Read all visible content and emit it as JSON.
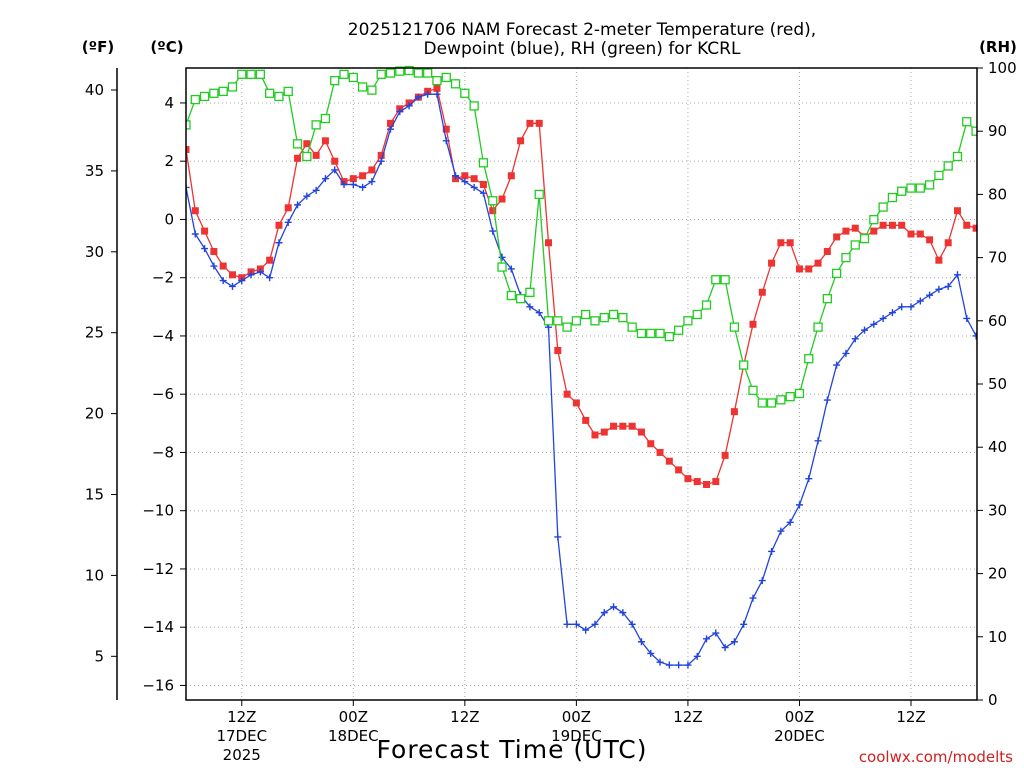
{
  "chart_data": {
    "type": "line",
    "title_line1": "2025121706 NAM Forecast 2-meter Temperature (red),",
    "title_line2": "Dewpoint (blue), RH (green) for KCRL",
    "xlabel": "Forecast Time (UTC)",
    "credit": "coolwx.com/modelts",
    "left_unit_f": "(ºF)",
    "left_unit_c": "(ºC)",
    "right_unit": "(RH)",
    "x_range_hours": [
      0,
      84
    ],
    "y_c_range": [
      -16.5,
      5.2
    ],
    "y_f_range": [
      2.3,
      41.36
    ],
    "y_rh_range": [
      0,
      100
    ],
    "y_c_ticks": [
      "4",
      "2",
      "0",
      "−2",
      "−4",
      "−6",
      "−8",
      "−10",
      "−12",
      "−14",
      "−16"
    ],
    "y_c_tick_values": [
      4,
      2,
      0,
      -2,
      -4,
      -6,
      -8,
      -10,
      -12,
      -14,
      -16
    ],
    "y_f_ticks": [
      "40",
      "35",
      "30",
      "25",
      "20",
      "15",
      "10",
      "5"
    ],
    "y_f_tick_values": [
      40,
      35,
      30,
      25,
      20,
      15,
      10,
      5
    ],
    "y_rh_ticks": [
      "100",
      "90",
      "80",
      "70",
      "60",
      "50",
      "40",
      "30",
      "20",
      "10",
      "0"
    ],
    "y_rh_tick_values": [
      100,
      90,
      80,
      70,
      60,
      50,
      40,
      30,
      20,
      10,
      0
    ],
    "x_ticks": [
      {
        "hour": 6,
        "line1": "12Z",
        "line2": "17DEC",
        "line3": "2025"
      },
      {
        "hour": 18,
        "line1": "00Z",
        "line2": "18DEC",
        "line3": ""
      },
      {
        "hour": 30,
        "line1": "12Z",
        "line2": "",
        "line3": ""
      },
      {
        "hour": 42,
        "line1": "00Z",
        "line2": "19DEC",
        "line3": ""
      },
      {
        "hour": 54,
        "line1": "12Z",
        "line2": "",
        "line3": ""
      },
      {
        "hour": 66,
        "line1": "00Z",
        "line2": "20DEC",
        "line3": ""
      },
      {
        "hour": 78,
        "line1": "12Z",
        "line2": "",
        "line3": ""
      }
    ],
    "grid": true,
    "series": [
      {
        "name": "Temperature",
        "units": "C",
        "color": "#ee3333",
        "marker": "filled-square",
        "points": [
          [
            0,
            2.4
          ],
          [
            1,
            0.3
          ],
          [
            2,
            -0.4
          ],
          [
            3,
            -1.1
          ],
          [
            4,
            -1.6
          ],
          [
            5,
            -1.9
          ],
          [
            6,
            -2.0
          ],
          [
            7,
            -1.8
          ],
          [
            8,
            -1.7
          ],
          [
            9,
            -1.4
          ],
          [
            10,
            -0.2
          ],
          [
            11,
            0.4
          ],
          [
            12,
            2.1
          ],
          [
            13,
            2.6
          ],
          [
            14,
            2.2
          ],
          [
            15,
            2.7
          ],
          [
            16,
            2.0
          ],
          [
            17,
            1.3
          ],
          [
            18,
            1.4
          ],
          [
            19,
            1.5
          ],
          [
            20,
            1.7
          ],
          [
            21,
            2.2
          ],
          [
            22,
            3.3
          ],
          [
            23,
            3.8
          ],
          [
            24,
            4.0
          ],
          [
            25,
            4.2
          ],
          [
            26,
            4.4
          ],
          [
            27,
            4.5
          ],
          [
            28,
            3.1
          ],
          [
            29,
            1.4
          ],
          [
            30,
            1.5
          ],
          [
            31,
            1.4
          ],
          [
            32,
            1.2
          ],
          [
            33,
            0.3
          ],
          [
            34,
            0.7
          ],
          [
            35,
            1.5
          ],
          [
            36,
            2.7
          ],
          [
            37,
            3.3
          ],
          [
            38,
            3.3
          ],
          [
            39,
            -0.8
          ],
          [
            40,
            -4.5
          ],
          [
            41,
            -6.0
          ],
          [
            42,
            -6.3
          ],
          [
            43,
            -6.9
          ],
          [
            44,
            -7.4
          ],
          [
            45,
            -7.3
          ],
          [
            46,
            -7.1
          ],
          [
            47,
            -7.1
          ],
          [
            48,
            -7.1
          ],
          [
            49,
            -7.3
          ],
          [
            50,
            -7.7
          ],
          [
            51,
            -8.0
          ],
          [
            52,
            -8.3
          ],
          [
            53,
            -8.6
          ],
          [
            54,
            -8.9
          ],
          [
            55,
            -9.0
          ],
          [
            56,
            -9.1
          ],
          [
            57,
            -9.0
          ],
          [
            58,
            -8.1
          ],
          [
            59,
            -6.6
          ],
          [
            60,
            -5.0
          ],
          [
            61,
            -3.6
          ],
          [
            62,
            -2.5
          ],
          [
            63,
            -1.5
          ],
          [
            64,
            -0.8
          ],
          [
            65,
            -0.8
          ],
          [
            66,
            -1.7
          ],
          [
            67,
            -1.7
          ],
          [
            68,
            -1.5
          ],
          [
            69,
            -1.1
          ],
          [
            70,
            -0.6
          ],
          [
            71,
            -0.4
          ],
          [
            72,
            -0.3
          ],
          [
            73,
            -0.6
          ],
          [
            74,
            -0.4
          ],
          [
            75,
            -0.2
          ],
          [
            76,
            -0.2
          ],
          [
            77,
            -0.2
          ],
          [
            78,
            -0.5
          ],
          [
            79,
            -0.5
          ],
          [
            80,
            -0.7
          ],
          [
            81,
            -1.4
          ],
          [
            82,
            -0.8
          ],
          [
            83,
            0.3
          ],
          [
            84,
            -0.2
          ],
          [
            85,
            -0.3
          ]
        ]
      },
      {
        "name": "Dewpoint",
        "units": "C",
        "color": "#2244dd",
        "marker": "plus",
        "points": [
          [
            0,
            1.1
          ],
          [
            1,
            -0.5
          ],
          [
            2,
            -1.0
          ],
          [
            3,
            -1.6
          ],
          [
            4,
            -2.1
          ],
          [
            5,
            -2.3
          ],
          [
            6,
            -2.1
          ],
          [
            7,
            -1.9
          ],
          [
            8,
            -1.8
          ],
          [
            9,
            -2.0
          ],
          [
            10,
            -0.8
          ],
          [
            11,
            -0.1
          ],
          [
            12,
            0.5
          ],
          [
            13,
            0.8
          ],
          [
            14,
            1.0
          ],
          [
            15,
            1.4
          ],
          [
            16,
            1.7
          ],
          [
            17,
            1.2
          ],
          [
            18,
            1.2
          ],
          [
            19,
            1.1
          ],
          [
            20,
            1.3
          ],
          [
            21,
            2.0
          ],
          [
            22,
            3.1
          ],
          [
            23,
            3.7
          ],
          [
            24,
            3.9
          ],
          [
            25,
            4.2
          ],
          [
            26,
            4.3
          ],
          [
            27,
            4.3
          ],
          [
            28,
            2.7
          ],
          [
            29,
            1.5
          ],
          [
            30,
            1.3
          ],
          [
            31,
            1.1
          ],
          [
            32,
            0.9
          ],
          [
            33,
            -0.4
          ],
          [
            34,
            -1.3
          ],
          [
            35,
            -1.7
          ],
          [
            36,
            -2.6
          ],
          [
            37,
            -3.0
          ],
          [
            38,
            -3.2
          ],
          [
            39,
            -3.7
          ],
          [
            40,
            -10.9
          ],
          [
            41,
            -13.9
          ],
          [
            42,
            -13.9
          ],
          [
            43,
            -14.1
          ],
          [
            44,
            -13.9
          ],
          [
            45,
            -13.5
          ],
          [
            46,
            -13.3
          ],
          [
            47,
            -13.5
          ],
          [
            48,
            -13.9
          ],
          [
            49,
            -14.5
          ],
          [
            50,
            -14.9
          ],
          [
            51,
            -15.2
          ],
          [
            52,
            -15.3
          ],
          [
            53,
            -15.3
          ],
          [
            54,
            -15.3
          ],
          [
            55,
            -15.0
          ],
          [
            56,
            -14.4
          ],
          [
            57,
            -14.2
          ],
          [
            58,
            -14.7
          ],
          [
            59,
            -14.5
          ],
          [
            60,
            -13.9
          ],
          [
            61,
            -13.0
          ],
          [
            62,
            -12.4
          ],
          [
            63,
            -11.4
          ],
          [
            64,
            -10.7
          ],
          [
            65,
            -10.4
          ],
          [
            66,
            -9.8
          ],
          [
            67,
            -8.9
          ],
          [
            68,
            -7.6
          ],
          [
            69,
            -6.2
          ],
          [
            70,
            -5.0
          ],
          [
            71,
            -4.6
          ],
          [
            72,
            -4.1
          ],
          [
            73,
            -3.8
          ],
          [
            74,
            -3.6
          ],
          [
            75,
            -3.4
          ],
          [
            76,
            -3.2
          ],
          [
            77,
            -3.0
          ],
          [
            78,
            -3.0
          ],
          [
            79,
            -2.8
          ],
          [
            80,
            -2.6
          ],
          [
            81,
            -2.4
          ],
          [
            82,
            -2.3
          ],
          [
            83,
            -1.9
          ],
          [
            84,
            -3.4
          ],
          [
            85,
            -4.0
          ]
        ]
      },
      {
        "name": "RH",
        "units": "%",
        "color": "#22cc22",
        "marker": "open-square",
        "points": [
          [
            0,
            91
          ],
          [
            1,
            95
          ],
          [
            2,
            95.5
          ],
          [
            3,
            96
          ],
          [
            4,
            96.3
          ],
          [
            5,
            97
          ],
          [
            6,
            99
          ],
          [
            7,
            99
          ],
          [
            8,
            99
          ],
          [
            9,
            96
          ],
          [
            10,
            95.5
          ],
          [
            11,
            96.3
          ],
          [
            12,
            88
          ],
          [
            13,
            86
          ],
          [
            14,
            91
          ],
          [
            15,
            92
          ],
          [
            16,
            98
          ],
          [
            17,
            99
          ],
          [
            18,
            98.5
          ],
          [
            19,
            97
          ],
          [
            20,
            96.5
          ],
          [
            21,
            99
          ],
          [
            22,
            99.2
          ],
          [
            23,
            99.5
          ],
          [
            24,
            99.6
          ],
          [
            25,
            99.2
          ],
          [
            26,
            99.2
          ],
          [
            27,
            98
          ],
          [
            28,
            98.5
          ],
          [
            29,
            97.5
          ],
          [
            30,
            96
          ],
          [
            31,
            94
          ],
          [
            32,
            85
          ],
          [
            33,
            79
          ],
          [
            34,
            68.5
          ],
          [
            35,
            64
          ],
          [
            36,
            63.5
          ],
          [
            37,
            64.5
          ],
          [
            38,
            80
          ],
          [
            39,
            60
          ],
          [
            40,
            60
          ],
          [
            41,
            59
          ],
          [
            42,
            60
          ],
          [
            43,
            61
          ],
          [
            44,
            60
          ],
          [
            45,
            60.5
          ],
          [
            46,
            61
          ],
          [
            47,
            60.5
          ],
          [
            48,
            59
          ],
          [
            49,
            58
          ],
          [
            50,
            58
          ],
          [
            51,
            58
          ],
          [
            52,
            57.5
          ],
          [
            53,
            58.5
          ],
          [
            54,
            60
          ],
          [
            55,
            61
          ],
          [
            56,
            62.5
          ],
          [
            57,
            66.5
          ],
          [
            58,
            66.5
          ],
          [
            59,
            59
          ],
          [
            60,
            53
          ],
          [
            61,
            49
          ],
          [
            62,
            47
          ],
          [
            63,
            47
          ],
          [
            64,
            47.5
          ],
          [
            65,
            48
          ],
          [
            66,
            48.5
          ],
          [
            67,
            54
          ],
          [
            68,
            59
          ],
          [
            69,
            63.5
          ],
          [
            70,
            67.5
          ],
          [
            71,
            70
          ],
          [
            72,
            72
          ],
          [
            73,
            73
          ],
          [
            74,
            76
          ],
          [
            75,
            78
          ],
          [
            76,
            79.5
          ],
          [
            77,
            80.5
          ],
          [
            78,
            81
          ],
          [
            79,
            81
          ],
          [
            80,
            81.5
          ],
          [
            81,
            83
          ],
          [
            82,
            84.5
          ],
          [
            83,
            86
          ],
          [
            84,
            91.5
          ],
          [
            85,
            90
          ]
        ]
      }
    ]
  }
}
